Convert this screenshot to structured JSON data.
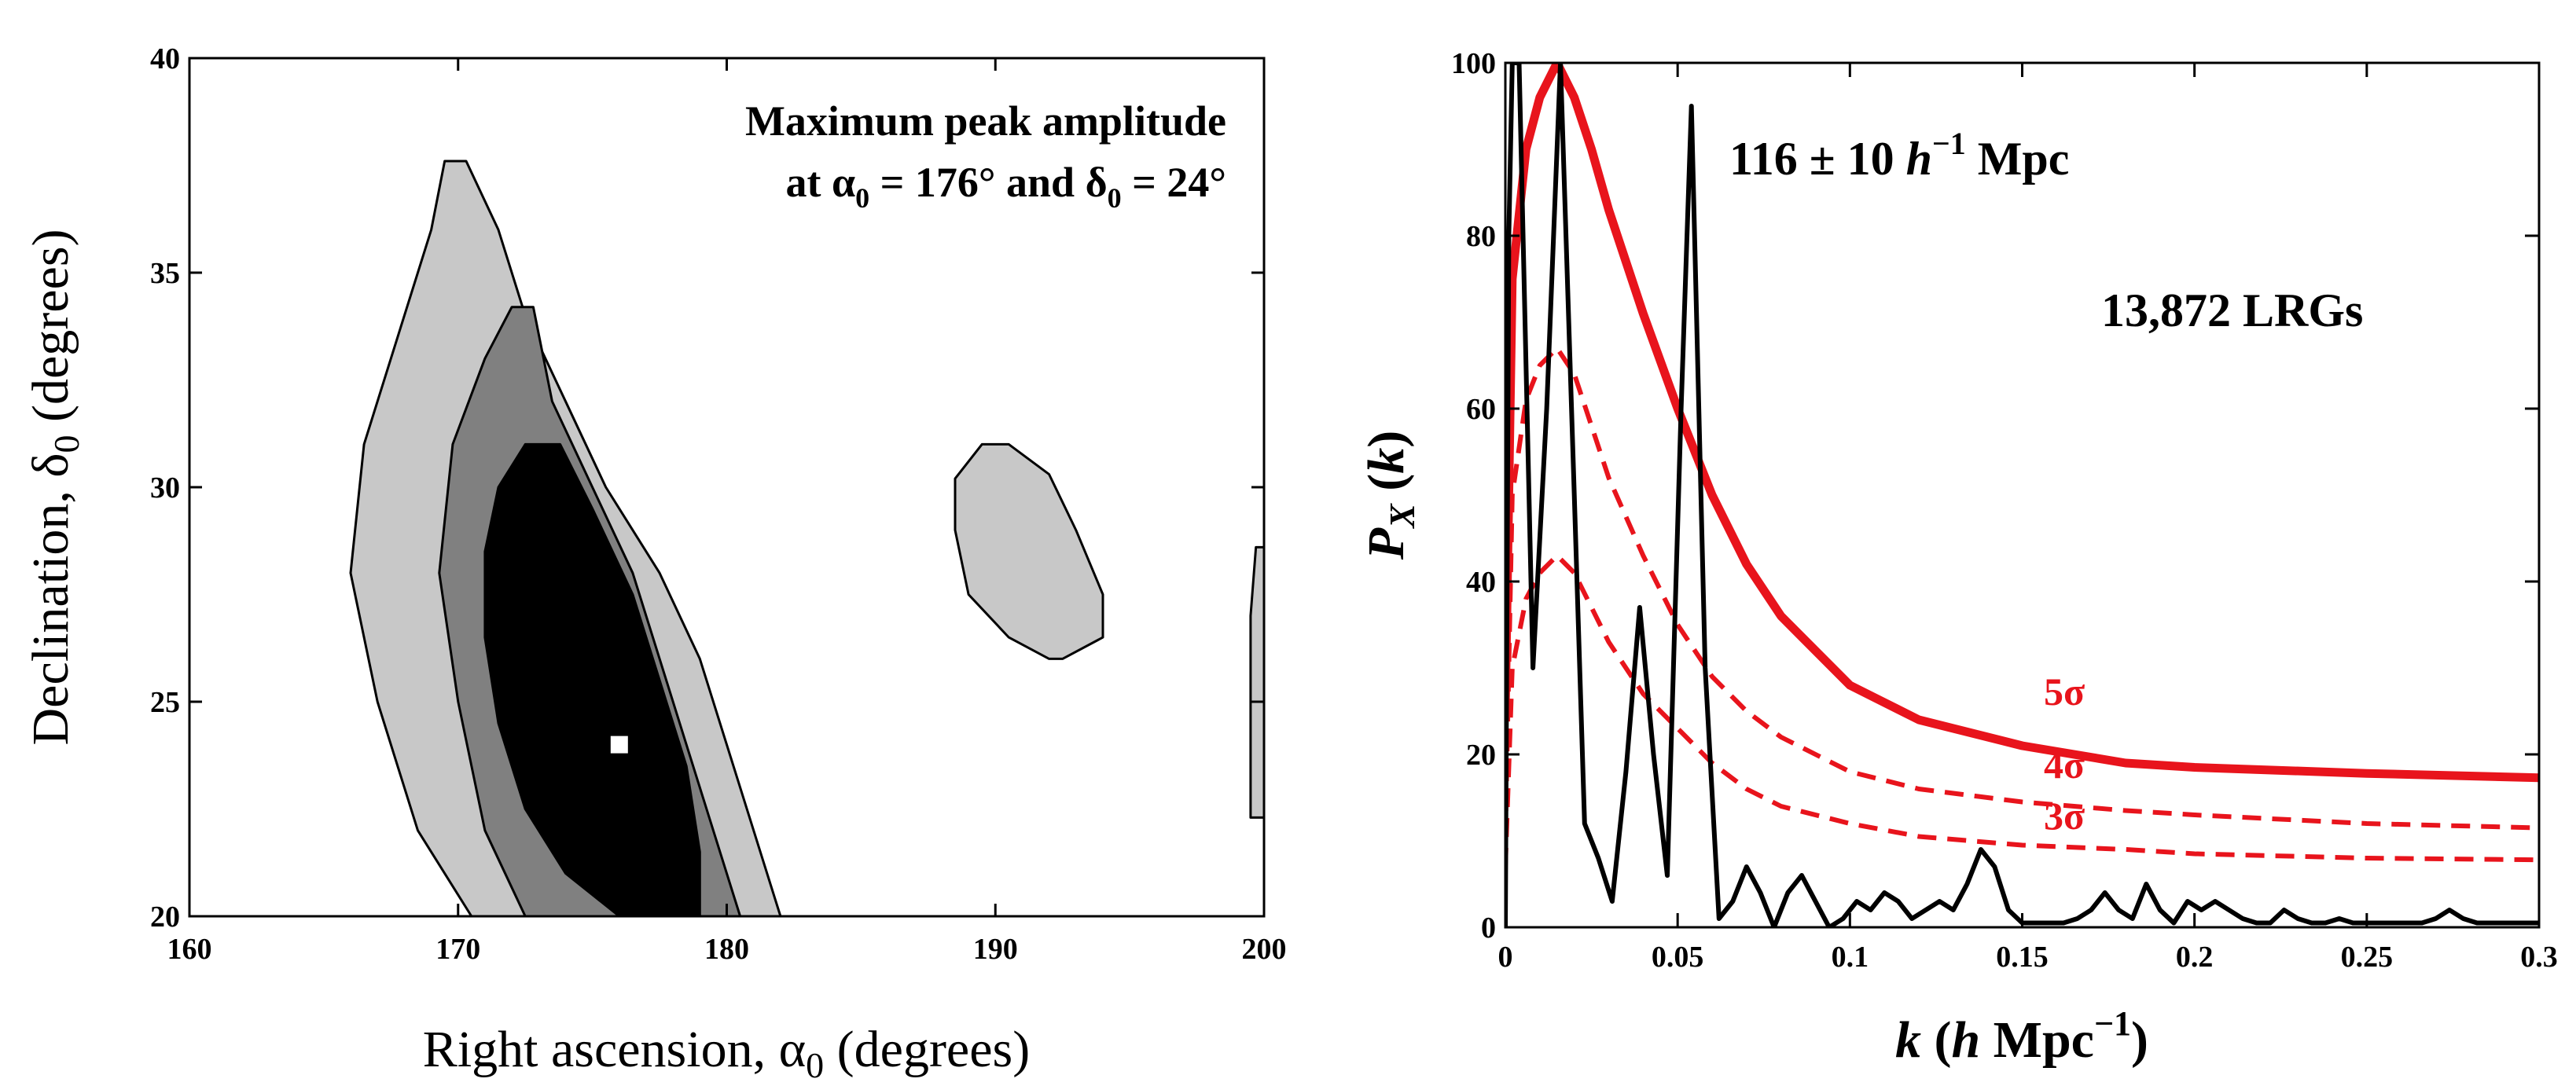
{
  "chart_data": [
    {
      "type": "contour",
      "title": "",
      "annotation_line1": "Maximum peak amplitude",
      "annotation_line2": "at α0 = 176° and δ0 = 24°",
      "xlabel": "Right ascension, α0 (degrees)",
      "ylabel": "Declination, δ0 (degrees)",
      "xlim": [
        160,
        200
      ],
      "ylim": [
        20,
        40
      ],
      "xticks": [
        160,
        170,
        180,
        190,
        200
      ],
      "yticks": [
        20,
        25,
        30,
        35,
        40
      ],
      "peak": {
        "alpha": 176,
        "delta": 24
      },
      "levels": [
        {
          "name": "outer",
          "fill": "#c8c8c8",
          "left": [
            [
              170.5,
              20
            ],
            [
              168.5,
              22
            ],
            [
              167,
              25
            ],
            [
              166,
              28
            ],
            [
              166.5,
              31
            ],
            [
              168,
              34
            ],
            [
              169,
              36
            ],
            [
              169.5,
              37.6
            ]
          ],
          "right": [
            [
              182,
              20
            ],
            [
              181,
              22
            ],
            [
              180,
              24
            ],
            [
              179,
              26
            ],
            [
              177.5,
              28
            ],
            [
              175.5,
              30
            ],
            [
              174,
              32
            ],
            [
              172.5,
              34
            ],
            [
              171.5,
              36
            ],
            [
              170.3,
              37.6
            ]
          ]
        },
        {
          "name": "middle",
          "fill": "#808080",
          "left": [
            [
              172.5,
              20
            ],
            [
              171,
              22
            ],
            [
              170,
              25
            ],
            [
              169.3,
              28
            ],
            [
              169.8,
              31
            ],
            [
              171,
              33
            ],
            [
              172,
              34.2
            ]
          ],
          "right": [
            [
              180.5,
              20
            ],
            [
              179.5,
              22
            ],
            [
              178.5,
              24
            ],
            [
              177.5,
              26
            ],
            [
              176.5,
              28
            ],
            [
              175,
              30
            ],
            [
              173.5,
              32
            ],
            [
              172.8,
              34.2
            ]
          ]
        },
        {
          "name": "inner",
          "fill": "#000000",
          "left": [
            [
              176,
              20
            ],
            [
              174,
              21
            ],
            [
              172.5,
              22.5
            ],
            [
              171.5,
              24.5
            ],
            [
              171,
              26.5
            ],
            [
              171,
              28.5
            ],
            [
              171.5,
              30
            ],
            [
              172.5,
              31
            ]
          ],
          "right": [
            [
              179,
              20
            ],
            [
              179,
              21.5
            ],
            [
              178.5,
              23.5
            ],
            [
              177.5,
              25.5
            ],
            [
              176.5,
              27.5
            ],
            [
              175,
              29.5
            ],
            [
              173.8,
              31
            ]
          ]
        },
        {
          "name": "island",
          "fill": "#c8c8c8",
          "left": [
            [
              192,
              26
            ],
            [
              190.5,
              26.5
            ],
            [
              189,
              27.5
            ],
            [
              188.5,
              29
            ],
            [
              188.5,
              30.2
            ],
            [
              189.5,
              31
            ]
          ],
          "right": [
            [
              192.5,
              26
            ],
            [
              194,
              26.5
            ],
            [
              194,
              27.5
            ],
            [
              193,
              29
            ],
            [
              192,
              30.3
            ],
            [
              190.5,
              31
            ]
          ]
        },
        {
          "name": "edge",
          "fill": "#c8c8c8",
          "left": [
            [
              199.5,
              22.3
            ],
            [
              199.5,
              24
            ],
            [
              199.5,
              27
            ],
            [
              199.7,
              28.6
            ]
          ],
          "right": [
            [
              200,
              22.3
            ],
            [
              200,
              24
            ],
            [
              200,
              27
            ],
            [
              200,
              28.6
            ]
          ]
        }
      ]
    },
    {
      "type": "line",
      "title": "",
      "ylabel": "P_X (k)",
      "xlabel": "k (h Mpc⁻¹)",
      "xlim": [
        0,
        0.3
      ],
      "ylim": [
        0,
        100
      ],
      "xticks": [
        0,
        0.05,
        0.1,
        0.15,
        0.2,
        0.25,
        0.3
      ],
      "xtick_labels": [
        "0",
        "0.05",
        "0.1",
        "0.15",
        "0.2",
        "0.25",
        "0.3"
      ],
      "yticks": [
        0,
        20,
        40,
        60,
        80,
        100
      ],
      "annotation_scale": "116 ± 10 h⁻¹ Mpc",
      "annotation_sample": "13,872 LRGs",
      "series": [
        {
          "name": "5σ",
          "color": "#e8141c",
          "style": "solid-thick",
          "x": [
            0,
            0.002,
            0.006,
            0.01,
            0.015,
            0.02,
            0.025,
            0.03,
            0.04,
            0.05,
            0.06,
            0.07,
            0.08,
            0.1,
            0.12,
            0.15,
            0.18,
            0.2,
            0.25,
            0.3
          ],
          "y": [
            25,
            75,
            90,
            96,
            100,
            96,
            90,
            83,
            71,
            60,
            50,
            42,
            36,
            28,
            24,
            21,
            19,
            18.5,
            17.8,
            17.3
          ]
        },
        {
          "name": "4σ",
          "color": "#e8141c",
          "style": "dashed",
          "x": [
            0,
            0.002,
            0.006,
            0.01,
            0.015,
            0.02,
            0.025,
            0.03,
            0.04,
            0.05,
            0.06,
            0.07,
            0.08,
            0.1,
            0.12,
            0.15,
            0.18,
            0.2,
            0.25,
            0.3
          ],
          "y": [
            10,
            50,
            61,
            65,
            67,
            64,
            58,
            52,
            43,
            35,
            29,
            25,
            22,
            18,
            16,
            14.5,
            13.5,
            13,
            12,
            11.5
          ]
        },
        {
          "name": "3σ",
          "color": "#e8141c",
          "style": "dashed",
          "x": [
            0,
            0.002,
            0.006,
            0.01,
            0.015,
            0.02,
            0.025,
            0.03,
            0.04,
            0.05,
            0.06,
            0.07,
            0.08,
            0.1,
            0.12,
            0.15,
            0.18,
            0.2,
            0.25,
            0.3
          ],
          "y": [
            7,
            30,
            38,
            41,
            43,
            41,
            37,
            33,
            27,
            23,
            19,
            16,
            14,
            12,
            10.5,
            9.5,
            9,
            8.5,
            8,
            7.8
          ]
        },
        {
          "name": "data",
          "color": "#000000",
          "style": "solid",
          "x": [
            0,
            0.001,
            0.002,
            0.004,
            0.008,
            0.012,
            0.016,
            0.02,
            0.023,
            0.027,
            0.031,
            0.035,
            0.039,
            0.043,
            0.047,
            0.051,
            0.054,
            0.058,
            0.062,
            0.066,
            0.07,
            0.074,
            0.078,
            0.082,
            0.086,
            0.09,
            0.094,
            0.098,
            0.102,
            0.106,
            0.11,
            0.114,
            0.118,
            0.122,
            0.126,
            0.13,
            0.134,
            0.138,
            0.142,
            0.146,
            0.15,
            0.154,
            0.158,
            0.162,
            0.166,
            0.17,
            0.174,
            0.178,
            0.182,
            0.186,
            0.19,
            0.194,
            0.198,
            0.202,
            0.206,
            0.21,
            0.214,
            0.218,
            0.222,
            0.226,
            0.23,
            0.234,
            0.238,
            0.242,
            0.246,
            0.25,
            0.254,
            0.258,
            0.262,
            0.266,
            0.27,
            0.274,
            0.278,
            0.282,
            0.286,
            0.29,
            0.294,
            0.298,
            0.3
          ],
          "y": [
            0,
            80,
            100,
            100,
            30,
            60,
            100,
            50,
            12,
            8,
            3,
            18,
            37,
            20,
            6,
            60,
            95,
            30,
            1,
            3,
            7,
            4,
            0,
            4,
            6,
            3,
            0,
            1,
            3,
            2,
            4,
            3,
            1,
            2,
            3,
            2,
            5,
            9,
            7,
            2,
            0.5,
            0.5,
            0.5,
            0.5,
            1,
            2,
            4,
            2,
            1,
            5,
            2,
            0.5,
            3,
            2,
            3,
            2,
            1,
            0.5,
            0.5,
            2,
            1,
            0.5,
            0.5,
            1,
            0.5,
            0.5,
            0.5,
            0.5,
            0.5,
            0.5,
            1,
            2,
            1,
            0.5,
            0.5,
            0.5,
            0.5,
            0.5,
            0.5
          ]
        }
      ],
      "sigma_labels": [
        "5σ",
        "4σ",
        "3σ"
      ]
    }
  ]
}
